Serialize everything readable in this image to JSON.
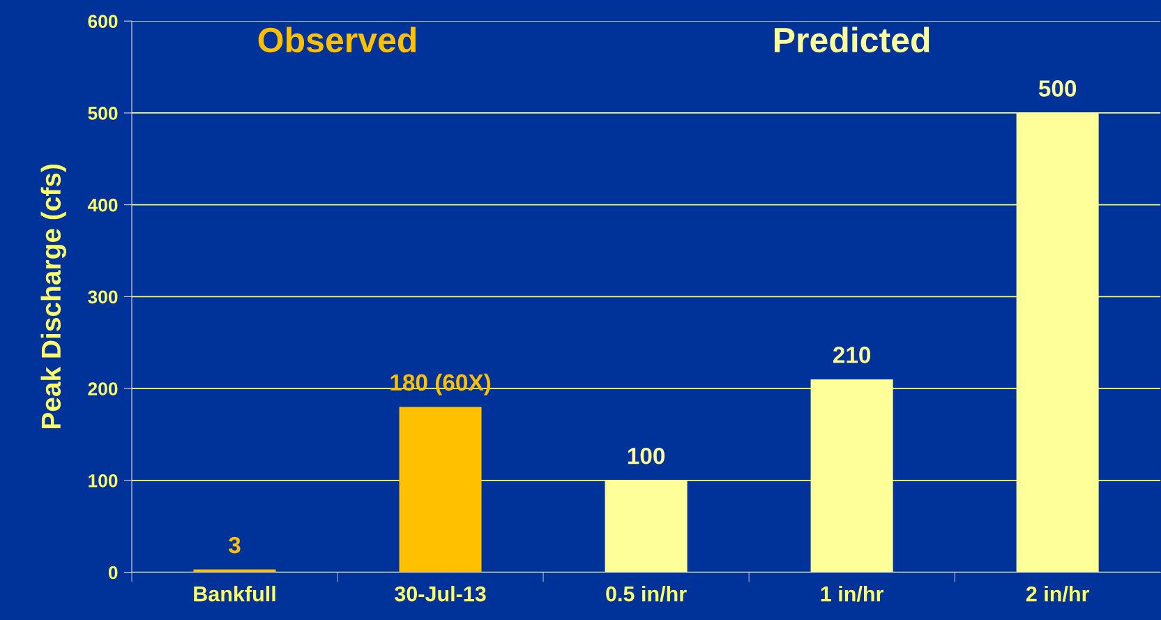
{
  "chart_data": {
    "type": "bar",
    "ylabel": "Peak Discharge (cfs)",
    "categories": [
      "Bankfull",
      "30-Jul-13",
      "0.5 in/hr",
      "1 in/hr",
      "2 in/hr"
    ],
    "values": [
      3,
      180,
      100,
      210,
      500
    ],
    "colors": [
      "#ffc000",
      "#ffc000",
      "#ffff99",
      "#ffff99",
      "#ffff99"
    ],
    "value_labels": [
      "3",
      "180 (60X)",
      "100",
      "210",
      "500"
    ],
    "annotations": [
      "Observed",
      "Predicted"
    ],
    "ylim": [
      0,
      600
    ],
    "yticks": [
      0,
      100,
      200,
      300,
      400,
      500,
      600
    ],
    "grid": "y",
    "legend": false
  }
}
